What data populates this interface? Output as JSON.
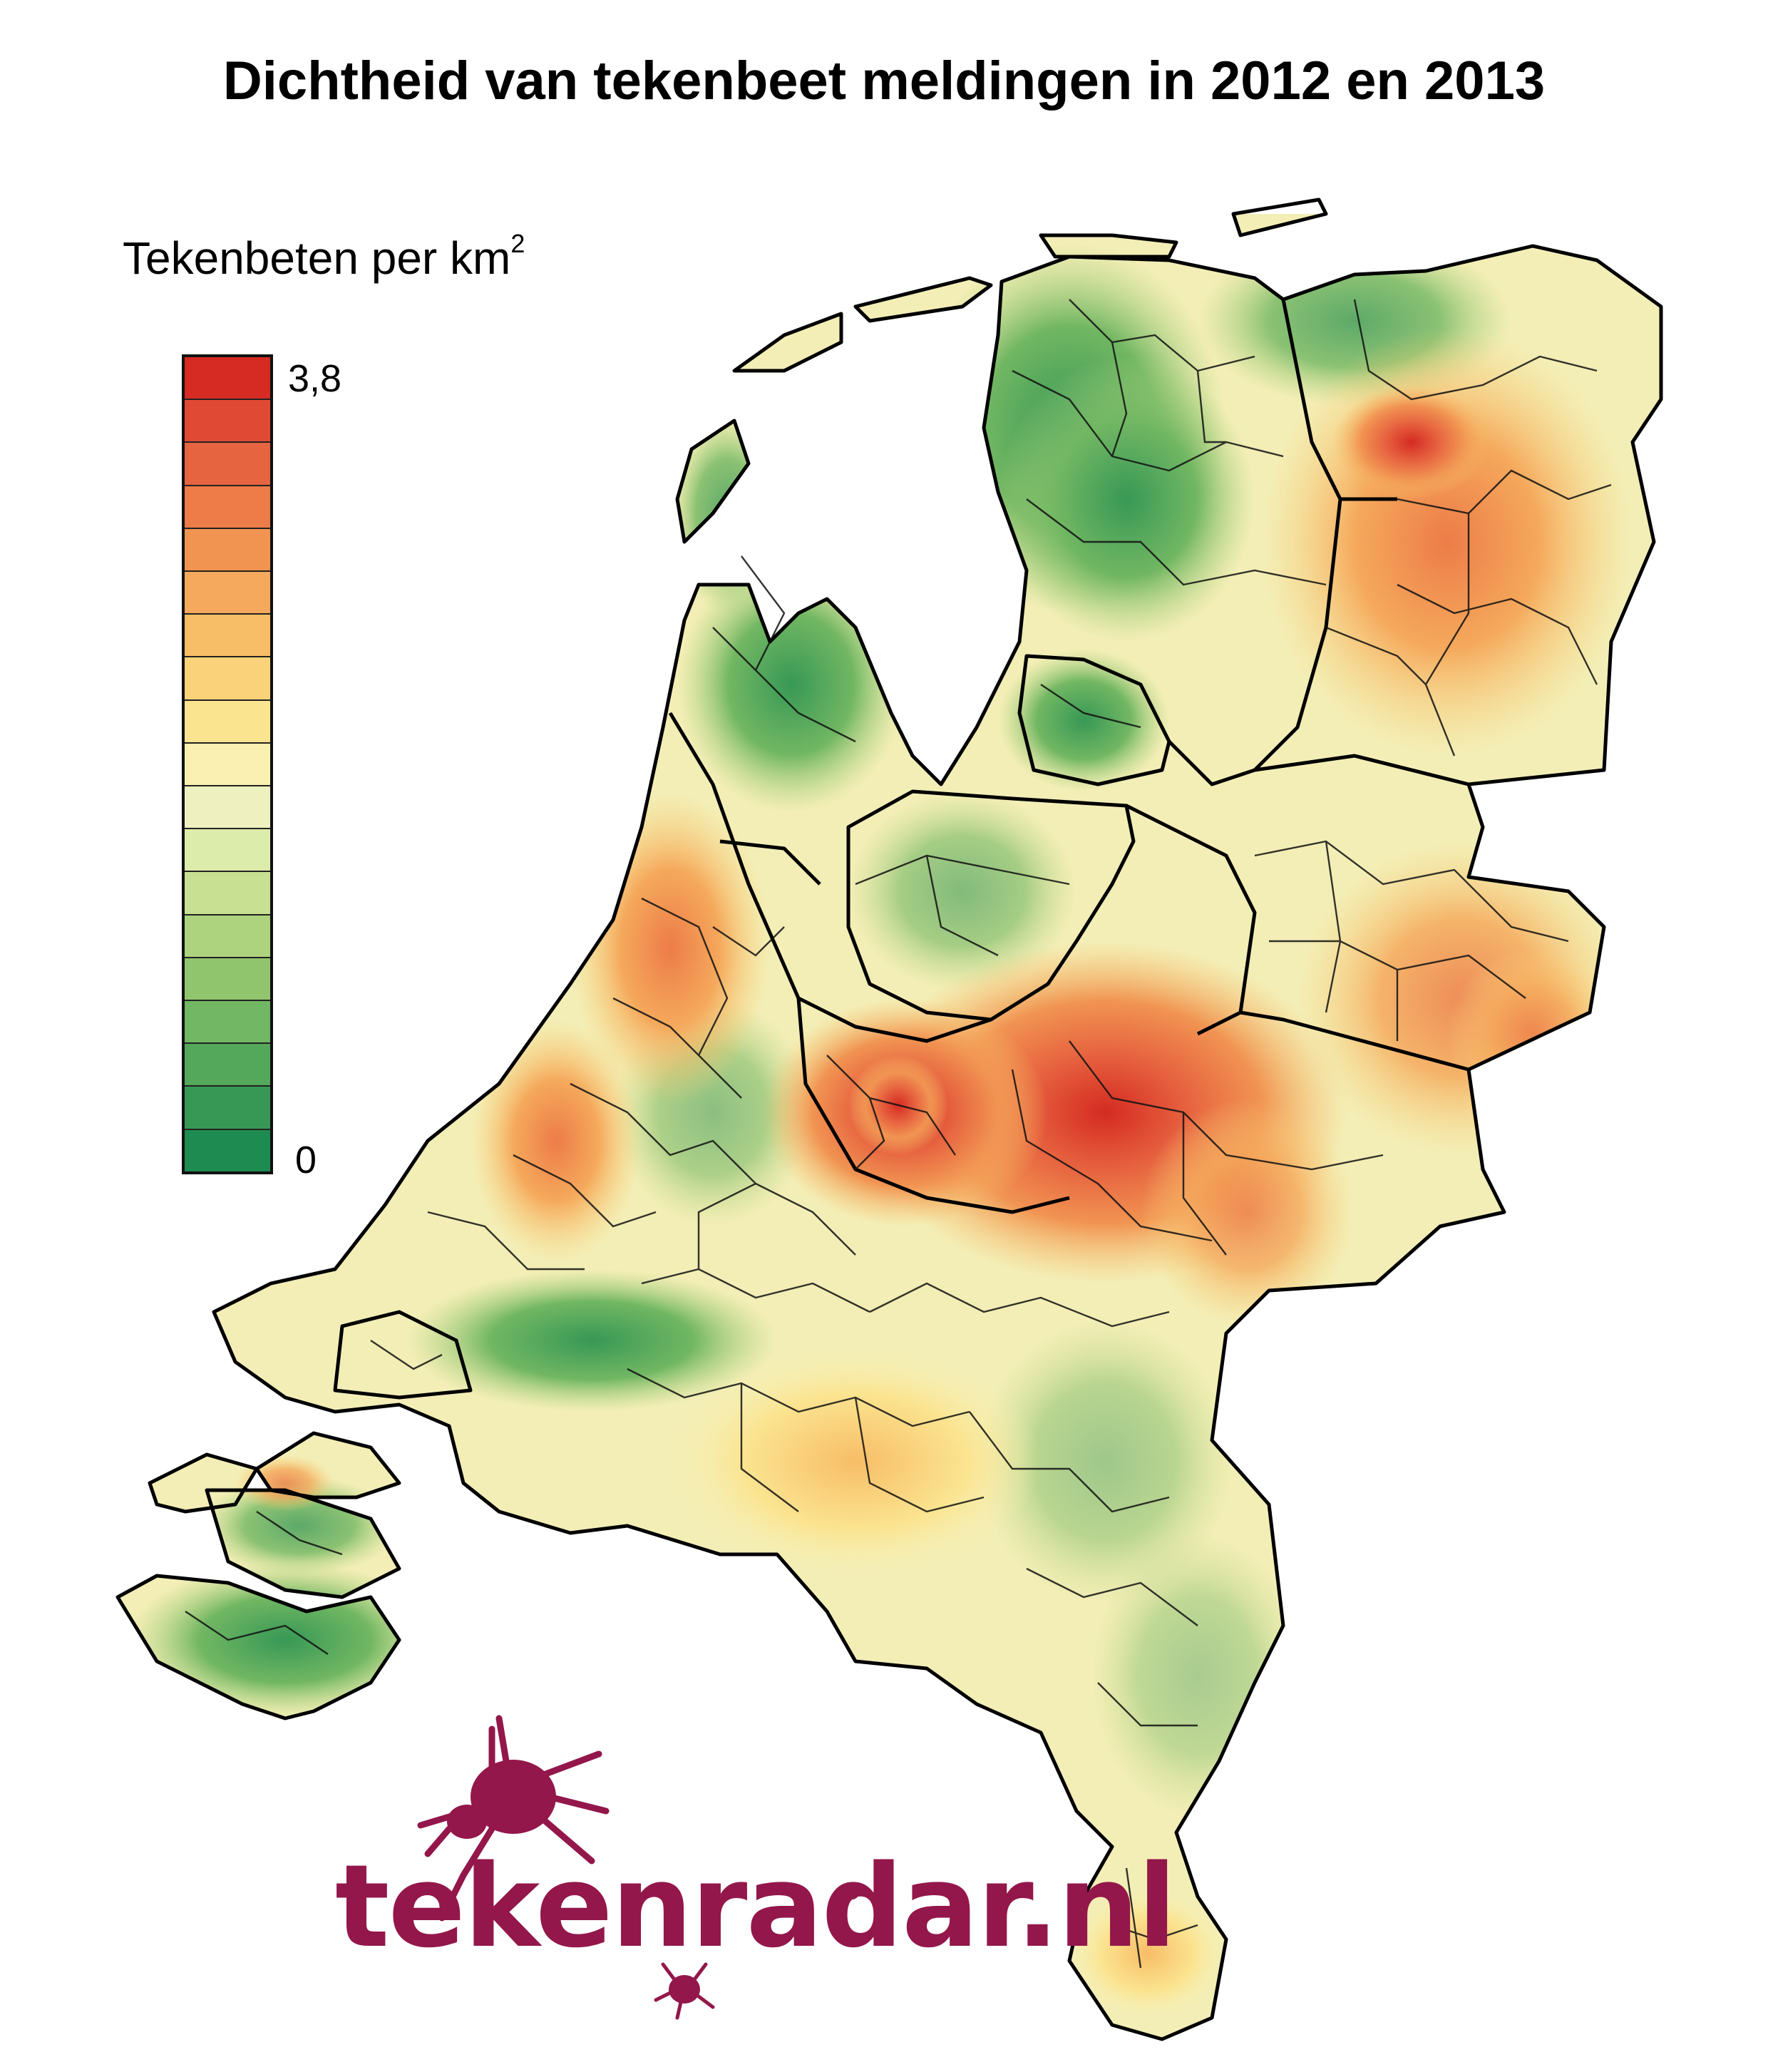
{
  "title": "Dichtheid van tekenbeet meldingen in 2012 en 2013",
  "legend": {
    "title": "Tekenbeten per km",
    "title_superscript": "2",
    "max_label": "3,8",
    "min_label": "0",
    "colors_top_to_bottom": [
      "#d52b22",
      "#e04a35",
      "#e76440",
      "#ed7c48",
      "#f19452",
      "#f5a95c",
      "#f8bd67",
      "#fad279",
      "#fbe490",
      "#f9f0b1",
      "#eef0c0",
      "#dcecaa",
      "#c7e091",
      "#add37e",
      "#90c56e",
      "#72b763",
      "#54a85b",
      "#379855",
      "#1e8c50"
    ]
  },
  "logo": {
    "text": "tekenradar.nl",
    "color": "#93174a"
  }
}
